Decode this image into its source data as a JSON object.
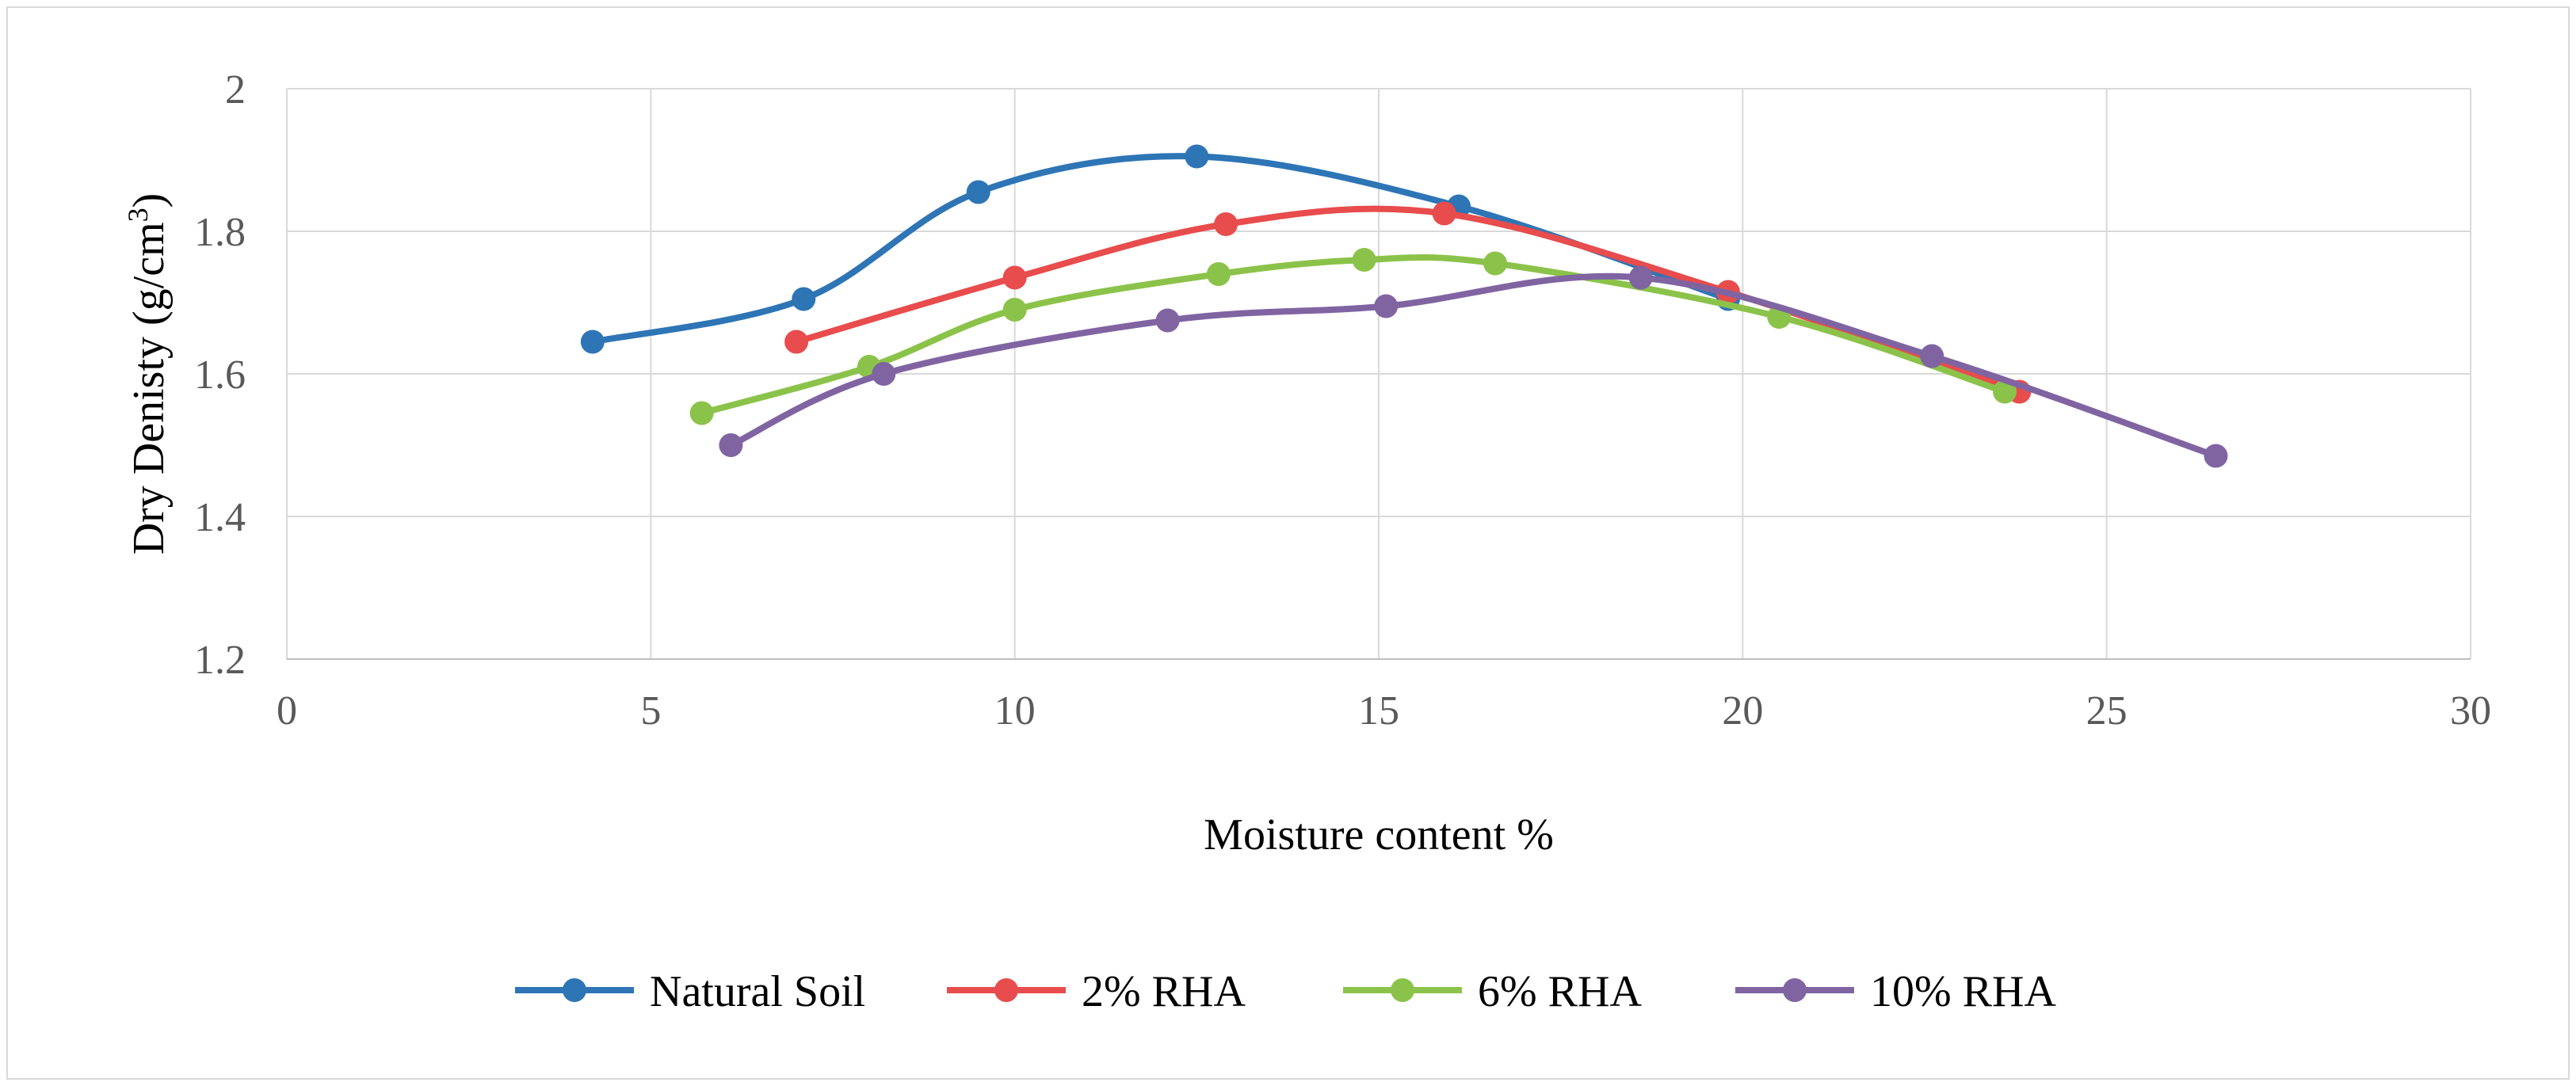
{
  "chart_data": {
    "type": "line",
    "title": "",
    "xlabel": "Moisture content %",
    "ylabel_main": "Dry Denisty (g/cm",
    "ylabel_sup": "3",
    "ylabel_close": ")",
    "xlim": [
      0,
      30
    ],
    "ylim": [
      1.2,
      2.0
    ],
    "xticks": [
      0,
      5,
      10,
      15,
      20,
      25,
      30
    ],
    "yticks": [
      1.2,
      1.4,
      1.6,
      1.8,
      2.0
    ],
    "xtick_labels": [
      "0",
      "5",
      "10",
      "15",
      "20",
      "25",
      "30"
    ],
    "ytick_labels": [
      "1.2",
      "1.4",
      "1.6",
      "1.8",
      "2"
    ],
    "grid": true,
    "smooth": true,
    "legend_position": "bottom",
    "series": [
      {
        "name": "Natural Soil",
        "color": "#2e75b6",
        "x": [
          4.2,
          7.1,
          9.5,
          12.5,
          16.1,
          19.8
        ],
        "y": [
          1.645,
          1.705,
          1.855,
          1.905,
          1.835,
          1.705
        ]
      },
      {
        "name": "2% RHA",
        "color": "#e84c4c",
        "x": [
          7.0,
          10.0,
          12.9,
          15.9,
          19.8,
          23.8
        ],
        "y": [
          1.645,
          1.735,
          1.81,
          1.825,
          1.715,
          1.575
        ]
      },
      {
        "name": "6% RHA",
        "color": "#8bc34a",
        "x": [
          5.7,
          8.0,
          10.0,
          12.8,
          14.8,
          16.6,
          20.5,
          23.6
        ],
        "y": [
          1.545,
          1.61,
          1.69,
          1.74,
          1.76,
          1.755,
          1.68,
          1.575
        ]
      },
      {
        "name": "10% RHA",
        "color": "#8064a2",
        "x": [
          6.1,
          8.2,
          12.1,
          15.1,
          18.6,
          22.6,
          26.5
        ],
        "y": [
          1.5,
          1.6,
          1.675,
          1.695,
          1.735,
          1.625,
          1.485
        ]
      }
    ]
  }
}
